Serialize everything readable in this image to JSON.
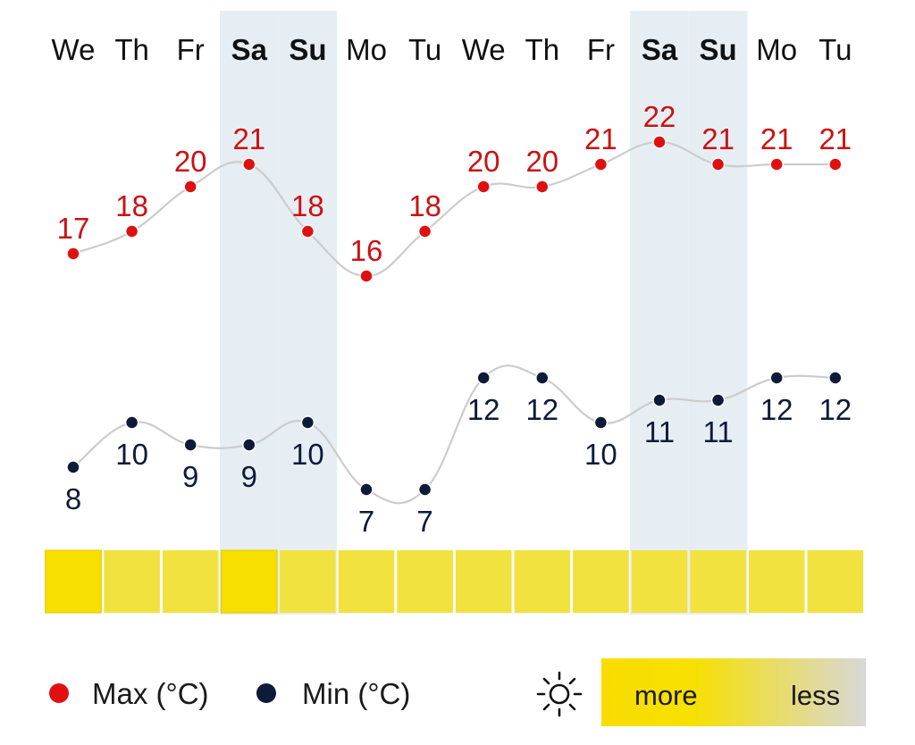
{
  "chart_data": {
    "type": "line",
    "categories": [
      "We",
      "Th",
      "Fr",
      "Sa",
      "Su",
      "Mo",
      "Tu",
      "We",
      "Th",
      "Fr",
      "Sa",
      "Su",
      "Mo",
      "Tu"
    ],
    "weekend_columns": [
      3,
      4,
      10,
      11
    ],
    "series": [
      {
        "name": "Max (°C)",
        "color": "#e01010",
        "values": [
          17,
          18,
          20,
          21,
          18,
          16,
          18,
          20,
          20,
          21,
          22,
          21,
          21,
          21
        ]
      },
      {
        "name": "Min (°C)",
        "color": "#0d1a3a",
        "values": [
          8,
          10,
          9,
          9,
          10,
          7,
          7,
          12,
          12,
          10,
          11,
          11,
          12,
          12
        ]
      }
    ],
    "sunshine": {
      "levels": [
        "more",
        "more-medium",
        "more-medium",
        "more",
        "more-medium",
        "more-medium",
        "more-medium",
        "more-medium",
        "more-medium",
        "more-medium",
        "more-medium",
        "more-medium",
        "more-medium",
        "more-medium"
      ],
      "colors": {
        "more": "#f7df00",
        "more-medium": "#f1e23f"
      }
    },
    "legend": {
      "max_label": "Max (°C)",
      "min_label": "Min (°C)",
      "sun_icon": "sun-icon",
      "scale_more": "more",
      "scale_less": "less"
    },
    "colors": {
      "weekend_band": "#e6eef4",
      "curve": "#cccccc"
    }
  }
}
